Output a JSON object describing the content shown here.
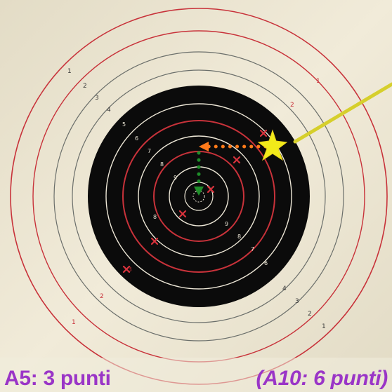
{
  "target": {
    "outer_ring_labels": [
      "1",
      "2",
      "3",
      "4",
      "5",
      "6",
      "7",
      "8"
    ],
    "colors": {
      "paper": "#efe8d4",
      "black_zone": "#0b0b0b",
      "red_ring": "#c8323a",
      "white_ring": "#ece6d6",
      "arrow_line": "#d6cf2c",
      "impact_star": "#f2ea1a",
      "orange_path": "#ff7a1a",
      "green_path": "#1f8f2a",
      "caption_text": "#9a35c7"
    }
  },
  "caption": {
    "left": "A5: 3 punti",
    "right": "(A10: 6 punti)"
  }
}
